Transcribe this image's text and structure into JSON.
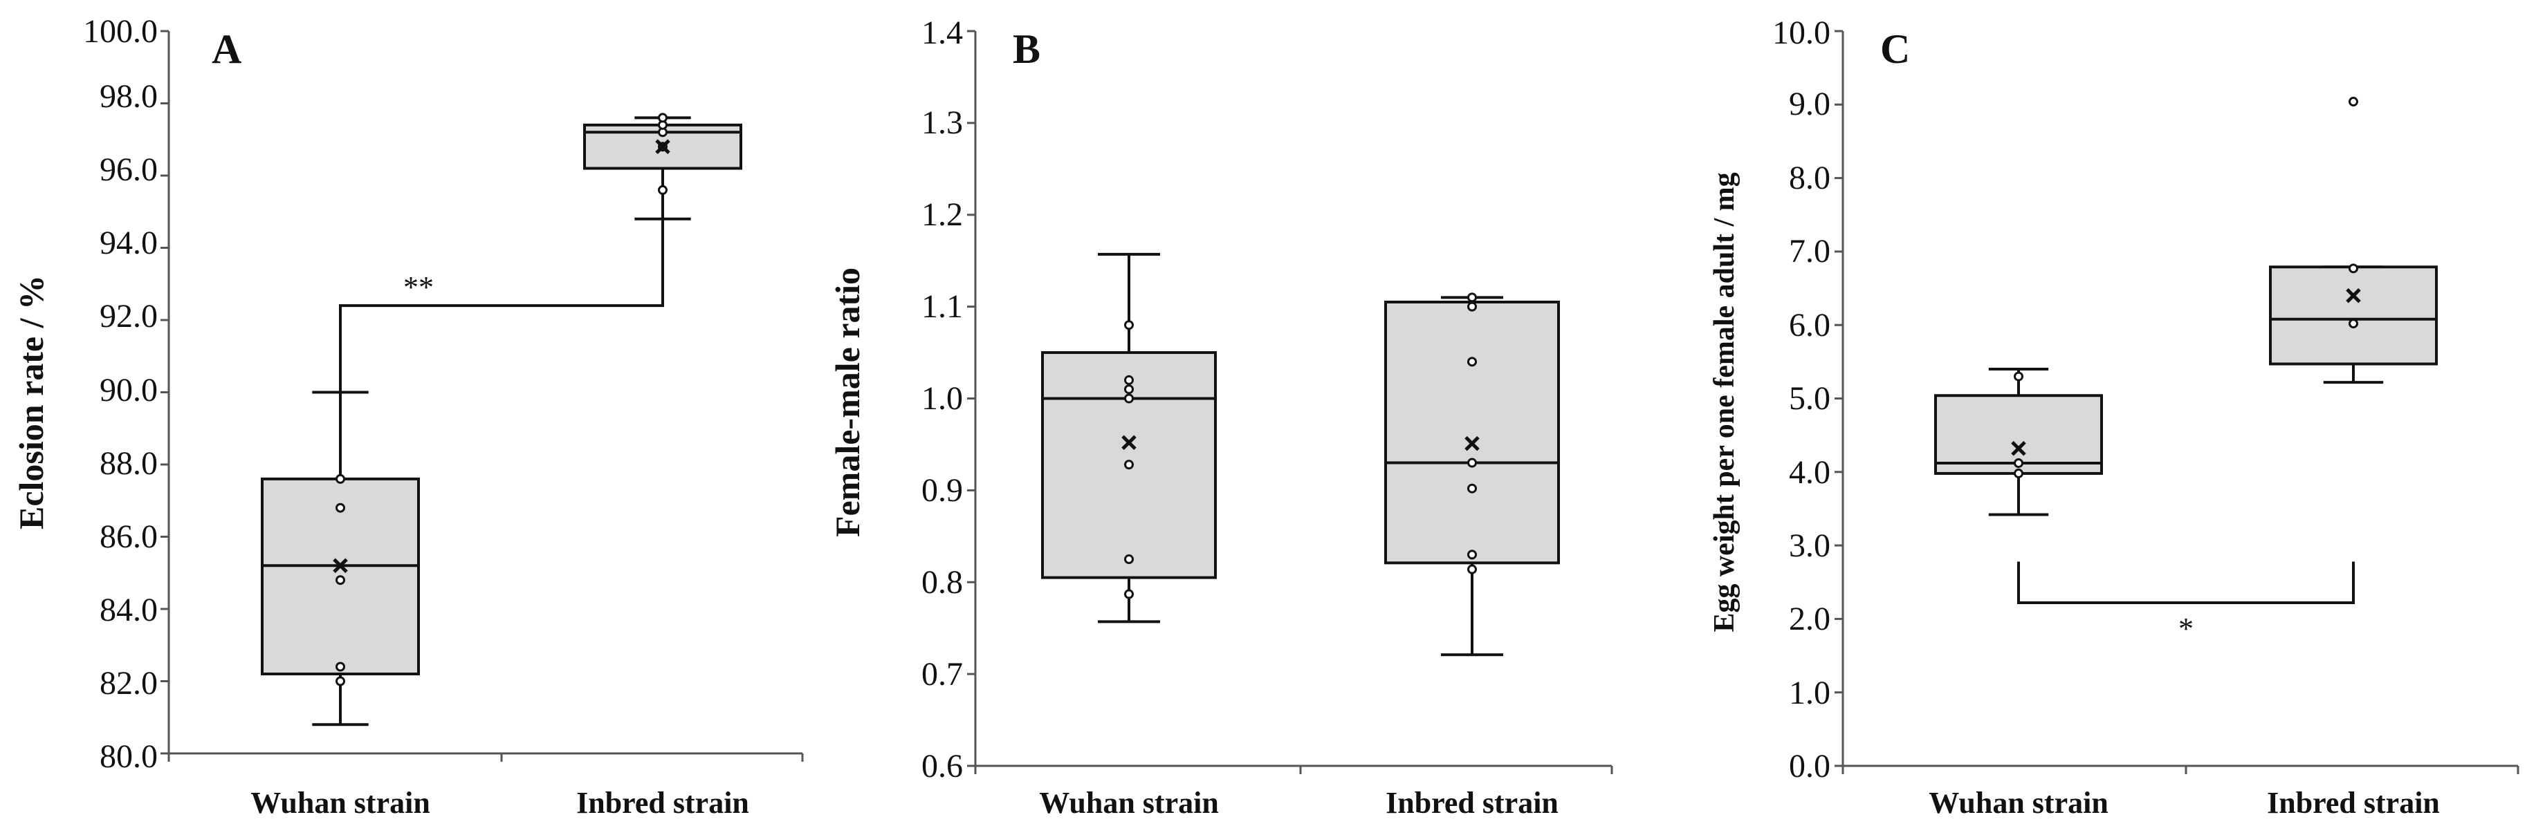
{
  "chart_data": [
    {
      "type": "box",
      "panel": "A",
      "ylabel": "Eclosion rate / %",
      "ylim": [
        80.0,
        100.0
      ],
      "yticks": [
        "80.0",
        "82.0",
        "84.0",
        "86.0",
        "88.0",
        "90.0",
        "92.0",
        "94.0",
        "96.0",
        "98.0",
        "100.0"
      ],
      "categories": [
        "Wuhan strain",
        "Inbred strain"
      ],
      "boxes": [
        {
          "min": 80.8,
          "q1": 82.2,
          "median": 85.2,
          "q3": 87.6,
          "max": 90.0,
          "mean": 85.2,
          "points": [
            82.0,
            82.4,
            84.8,
            86.8,
            87.6
          ]
        },
        {
          "min": 94.8,
          "q1": 96.2,
          "median": 97.2,
          "q3": 97.4,
          "max": 97.6,
          "mean": 96.8,
          "points": [
            95.6,
            96.8,
            97.2,
            97.4,
            97.6
          ]
        }
      ],
      "significance": {
        "label": "**",
        "y": 92.4,
        "from_y": [
          92.4,
          92.4
        ],
        "to_y": [
          92.4,
          94.0
        ]
      }
    },
    {
      "type": "box",
      "panel": "B",
      "ylabel": "Female-male ratio",
      "ylim": [
        0.6,
        1.4
      ],
      "yticks": [
        "0.6",
        "0.7",
        "0.8",
        "0.9",
        "1.0",
        "1.1",
        "1.2",
        "1.3",
        "1.4"
      ],
      "categories": [
        "Wuhan strain",
        "Inbred strain"
      ],
      "boxes": [
        {
          "min": 0.757,
          "q1": 0.805,
          "median": 1.0,
          "q3": 1.05,
          "max": 1.157,
          "mean": 0.952,
          "points": [
            0.787,
            0.825,
            0.928,
            1.0,
            1.01,
            1.02,
            1.08
          ]
        },
        {
          "min": 0.721,
          "q1": 0.821,
          "median": 0.93,
          "q3": 1.105,
          "max": 1.11,
          "mean": 0.951,
          "points": [
            0.814,
            0.83,
            0.902,
            0.93,
            1.04,
            1.1,
            1.11
          ]
        }
      ]
    },
    {
      "type": "box",
      "panel": "C",
      "ylabel": "Egg weight per one female adult / mg",
      "ylim": [
        0.0,
        10.0
      ],
      "yticks": [
        "0.0",
        "1.0",
        "2.0",
        "3.0",
        "4.0",
        "5.0",
        "6.0",
        "7.0",
        "8.0",
        "9.0",
        "10.0"
      ],
      "categories": [
        "Wuhan strain",
        "Inbred strain"
      ],
      "boxes": [
        {
          "min": 3.42,
          "q1": 3.98,
          "median": 4.12,
          "q3": 5.04,
          "max": 5.4,
          "mean": 4.32,
          "points": [
            3.98,
            4.12,
            5.3
          ]
        },
        {
          "min": 5.22,
          "q1": 5.47,
          "median": 6.08,
          "q3": 6.79,
          "max": 6.79,
          "mean": 6.4,
          "points": [
            6.02,
            6.77,
            9.04
          ]
        }
      ],
      "significance": {
        "label": "*",
        "y": 2.22,
        "top": 2.78
      }
    }
  ]
}
